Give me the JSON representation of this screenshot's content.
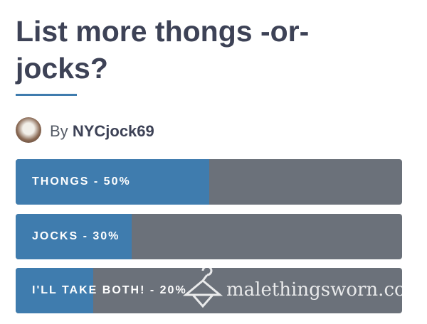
{
  "header": {
    "title": "List more thongs -or- jocks?",
    "by": "By",
    "author": "NYCjock69"
  },
  "poll": {
    "options": [
      {
        "label": "THONGS - 50%",
        "percent": 50
      },
      {
        "label": "JOCKS - 30%",
        "percent": 30
      },
      {
        "label": "I'LL TAKE BOTH! - 20%",
        "percent": 20
      }
    ],
    "scale_max": 100,
    "fill_color": "#3f7cae",
    "track_color": "#6b717a"
  },
  "watermark": "malethingsworn.com"
}
